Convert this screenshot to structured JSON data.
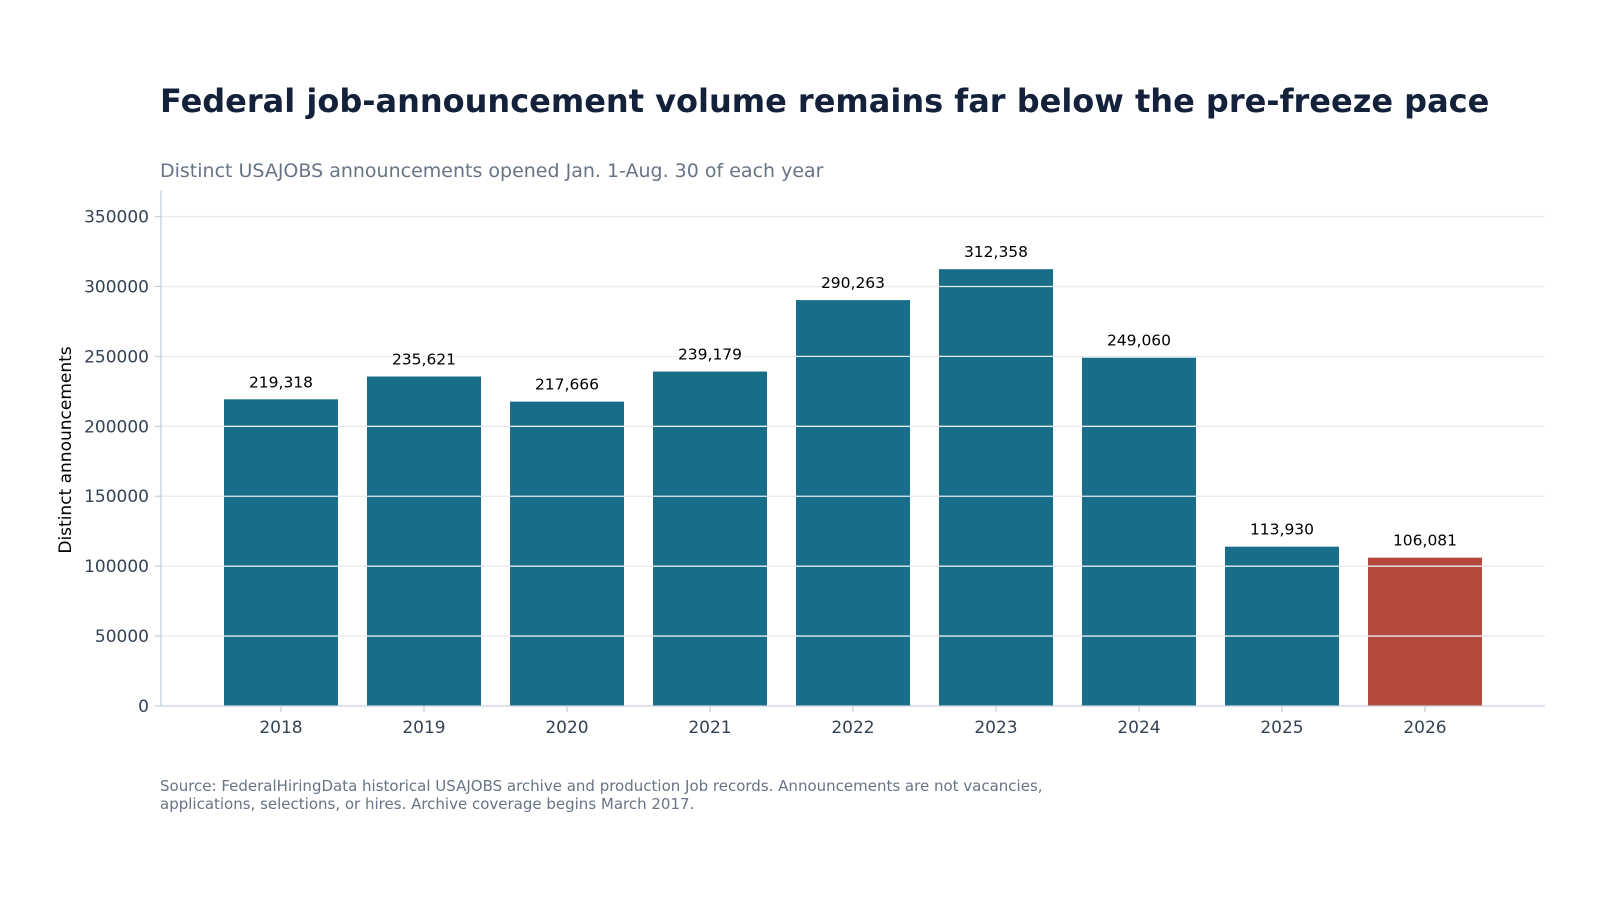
{
  "chart_data": {
    "type": "bar",
    "title": "Federal job-announcement volume remains far below the pre-freeze pace",
    "subtitle": "Distinct USAJOBS announcements opened Jan. 1-Aug. 30 of each year",
    "ylabel": "Distinct announcements",
    "xlabel": "",
    "categories": [
      "2018",
      "2019",
      "2020",
      "2021",
      "2022",
      "2023",
      "2024",
      "2025",
      "2026"
    ],
    "values": [
      219318,
      235621,
      217666,
      239179,
      290263,
      312358,
      249060,
      113930,
      106081
    ],
    "data_labels": [
      "219,318",
      "235,621",
      "217,666",
      "239,179",
      "290,263",
      "312,358",
      "249,060",
      "113,930",
      "106,081"
    ],
    "highlight_index": 8,
    "ylim": [
      0,
      369000
    ],
    "yticks": [
      0,
      50000,
      100000,
      150000,
      200000,
      250000,
      300000,
      350000
    ],
    "ytick_labels": [
      "0",
      "50000",
      "100000",
      "150000",
      "200000",
      "250000",
      "300000",
      "350000"
    ],
    "grid": true,
    "legend": "none",
    "colors": {
      "bar": "#186d88",
      "highlight": "#b54a3c",
      "grid": "#e6ecf1",
      "axis": "#c7d2dd",
      "tick_text": "#344255",
      "title": "#14213a",
      "muted_text": "#677486"
    },
    "source": "Source: FederalHiringData historical USAJOBS archive and production Job records. Announcements are not vacancies, applications, selections, or hires. Archive coverage begins March 2017."
  }
}
